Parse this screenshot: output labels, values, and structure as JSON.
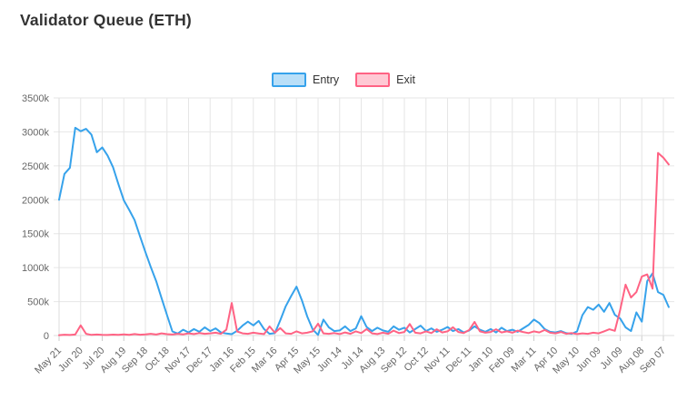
{
  "title": "Validator Queue (ETH)",
  "legend": [
    {
      "label": "Entry",
      "color": "#36A2EB",
      "fill": "rgba(54,162,235,0.35)"
    },
    {
      "label": "Exit",
      "color": "#FF6384",
      "fill": "rgba(255,99,132,0.35)"
    }
  ],
  "colors": {
    "entry": "#36A2EB",
    "exit": "#FF6384",
    "grid": "#e6e6e6",
    "axis_text": "#666666",
    "title_text": "#333333",
    "background": "#ffffff"
  },
  "chart_data": {
    "type": "line",
    "title": "Validator Queue (ETH)",
    "legend_position": "top-center",
    "grid": true,
    "y_unit": "k",
    "ylim": [
      0,
      3500
    ],
    "y_ticks": [
      0,
      500,
      1000,
      1500,
      2000,
      2500,
      3000,
      3500
    ],
    "y_tick_labels": [
      "0",
      "500k",
      "1000k",
      "1500k",
      "2000k",
      "2500k",
      "3000k",
      "3500k"
    ],
    "x_tick_labels": [
      "May 21",
      "Jun 20",
      "Jul 20",
      "Aug 19",
      "Sep 18",
      "Oct 18",
      "Nov 17",
      "Dec 17",
      "Jan 16",
      "Feb 15",
      "Mar 16",
      "Apr 15",
      "May 15",
      "Jun 14",
      "Jul 14",
      "Aug 13",
      "Sep 12",
      "Oct 12",
      "Nov 11",
      "Dec 11",
      "Jan 10",
      "Feb 09",
      "Mar 11",
      "Apr 10",
      "May 10",
      "Jun 09",
      "Jul 09",
      "Aug 08",
      "Sep 07"
    ],
    "points_per_interval": 4,
    "series": [
      {
        "name": "Entry",
        "color": "#36A2EB",
        "values": [
          2000,
          2380,
          2470,
          3060,
          3010,
          3045,
          2960,
          2700,
          2770,
          2650,
          2480,
          2230,
          1990,
          1850,
          1700,
          1460,
          1230,
          1010,
          800,
          550,
          300,
          60,
          30,
          85,
          45,
          95,
          55,
          120,
          65,
          105,
          45,
          30,
          20,
          70,
          145,
          205,
          150,
          215,
          95,
          25,
          35,
          225,
          430,
          580,
          720,
          520,
          280,
          90,
          10,
          235,
          120,
          65,
          75,
          135,
          65,
          105,
          285,
          125,
          65,
          115,
          75,
          55,
          135,
          85,
          115,
          45,
          95,
          145,
          65,
          105,
          55,
          85,
          125,
          65,
          95,
          45,
          75,
          135,
          85,
          55,
          95,
          45,
          115,
          65,
          85,
          55,
          105,
          155,
          235,
          185,
          95,
          55,
          45,
          65,
          35,
          25,
          60,
          300,
          420,
          380,
          455,
          350,
          480,
          305,
          250,
          120,
          65,
          340,
          205,
          800,
          915,
          640,
          600,
          420
        ]
      },
      {
        "name": "Exit",
        "color": "#FF6384",
        "values": [
          5,
          12,
          8,
          15,
          150,
          25,
          10,
          15,
          10,
          8,
          14,
          10,
          16,
          10,
          22,
          12,
          16,
          26,
          15,
          32,
          20,
          15,
          26,
          18,
          32,
          22,
          36,
          26,
          32,
          42,
          26,
          85,
          480,
          60,
          32,
          26,
          42,
          30,
          22,
          135,
          42,
          110,
          32,
          26,
          62,
          32,
          42,
          62,
          175,
          32,
          26,
          36,
          22,
          46,
          26,
          62,
          36,
          95,
          32,
          22,
          42,
          26,
          72,
          36,
          52,
          170,
          42,
          32,
          62,
          36,
          92,
          46,
          62,
          122,
          52,
          36,
          82,
          200,
          62,
          42,
          52,
          92,
          46,
          62,
          42,
          72,
          52,
          36,
          62,
          46,
          82,
          42,
          32,
          52,
          26,
          36,
          22,
          32,
          26,
          42,
          32,
          62,
          92,
          70,
          380,
          750,
          560,
          640,
          870,
          900,
          690,
          2690,
          2620,
          2520
        ]
      }
    ]
  }
}
